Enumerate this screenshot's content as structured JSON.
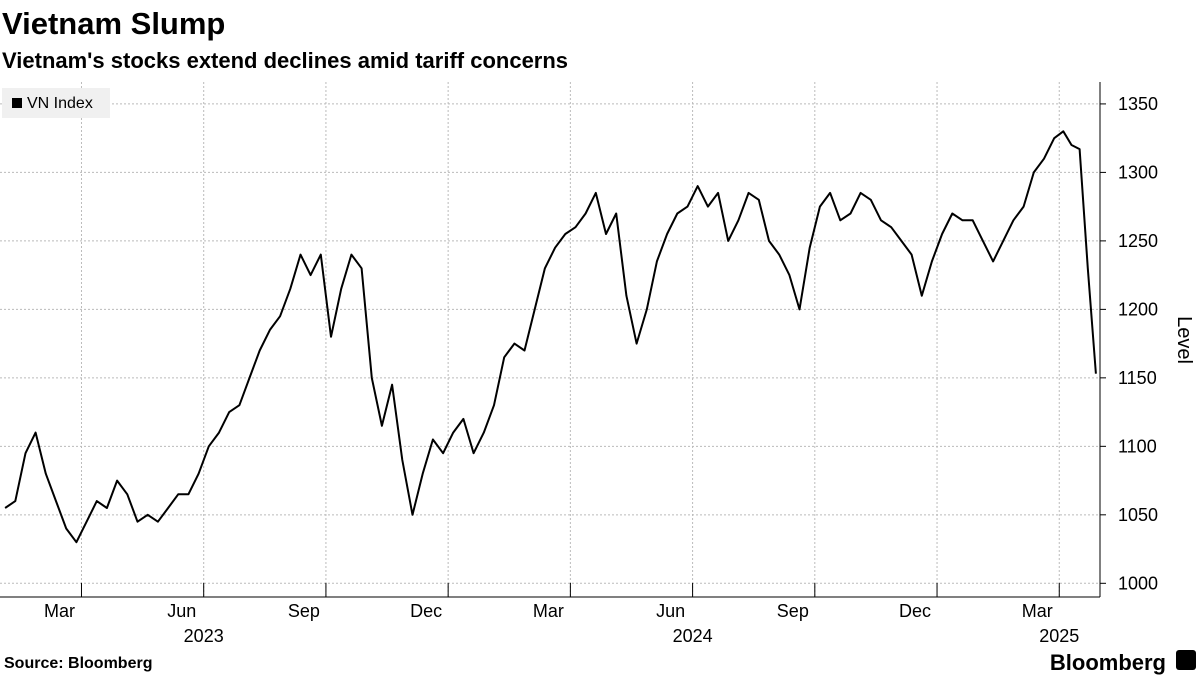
{
  "chart_data": {
    "type": "line",
    "title": "Vietnam Slump",
    "subtitle": "Vietnam's stocks extend declines amid tariff concerns",
    "y_axis_label": "Level",
    "source": "Source: Bloomberg",
    "brand": "Bloomberg",
    "legend_position": "top-left",
    "grid": true,
    "x": [
      "2023-01",
      "2023-01",
      "2023-01",
      "2023-01",
      "2023-02",
      "2023-02",
      "2023-02",
      "2023-02",
      "2023-03",
      "2023-03",
      "2023-03",
      "2023-03",
      "2023-04",
      "2023-04",
      "2023-04",
      "2023-04",
      "2023-05",
      "2023-05",
      "2023-05",
      "2023-05",
      "2023-06",
      "2023-06",
      "2023-06",
      "2023-06",
      "2023-07",
      "2023-07",
      "2023-07",
      "2023-07",
      "2023-08",
      "2023-08",
      "2023-08",
      "2023-08",
      "2023-09",
      "2023-09",
      "2023-09",
      "2023-09",
      "2023-10",
      "2023-10",
      "2023-10",
      "2023-10",
      "2023-11",
      "2023-11",
      "2023-11",
      "2023-11",
      "2023-12",
      "2023-12",
      "2023-12",
      "2023-12",
      "2024-01",
      "2024-01",
      "2024-01",
      "2024-01",
      "2024-02",
      "2024-02",
      "2024-02",
      "2024-02",
      "2024-03",
      "2024-03",
      "2024-03",
      "2024-03",
      "2024-04",
      "2024-04",
      "2024-04",
      "2024-04",
      "2024-05",
      "2024-05",
      "2024-05",
      "2024-05",
      "2024-06",
      "2024-06",
      "2024-06",
      "2024-06",
      "2024-07",
      "2024-07",
      "2024-07",
      "2024-07",
      "2024-08",
      "2024-08",
      "2024-08",
      "2024-08",
      "2024-09",
      "2024-09",
      "2024-09",
      "2024-09",
      "2024-10",
      "2024-10",
      "2024-10",
      "2024-10",
      "2024-11",
      "2024-11",
      "2024-11",
      "2024-11",
      "2024-12",
      "2024-12",
      "2024-12",
      "2024-12",
      "2025-01",
      "2025-01",
      "2025-01",
      "2025-01",
      "2025-02",
      "2025-02",
      "2025-02",
      "2025-02",
      "2025-03",
      "2025-03",
      "2025-03",
      "2025-03",
      "2025-03"
    ],
    "series": [
      {
        "name": "VN Index",
        "color": "#000000",
        "values": [
          1055,
          1060,
          1095,
          1110,
          1080,
          1060,
          1040,
          1030,
          1045,
          1060,
          1055,
          1075,
          1065,
          1045,
          1050,
          1045,
          1055,
          1065,
          1065,
          1080,
          1100,
          1110,
          1125,
          1130,
          1150,
          1170,
          1185,
          1195,
          1215,
          1240,
          1225,
          1240,
          1180,
          1215,
          1240,
          1230,
          1150,
          1115,
          1145,
          1090,
          1050,
          1080,
          1105,
          1095,
          1110,
          1120,
          1095,
          1110,
          1130,
          1165,
          1175,
          1170,
          1200,
          1230,
          1245,
          1255,
          1260,
          1270,
          1285,
          1255,
          1270,
          1210,
          1175,
          1200,
          1235,
          1255,
          1270,
          1275,
          1290,
          1275,
          1285,
          1250,
          1265,
          1285,
          1280,
          1250,
          1240,
          1225,
          1200,
          1245,
          1275,
          1285,
          1265,
          1270,
          1285,
          1280,
          1265,
          1260,
          1250,
          1240,
          1210,
          1235,
          1255,
          1270,
          1265,
          1265,
          1250,
          1235,
          1250,
          1265,
          1275,
          1300,
          1310,
          1325,
          1330,
          1320,
          1317,
          1230,
          1153
        ]
      }
    ],
    "xlim": [
      "2023-01",
      "2025-03"
    ],
    "xticks": [
      {
        "value": "2023-03",
        "label": "Mar"
      },
      {
        "value": "2023-06",
        "label": "Jun",
        "year": "2023"
      },
      {
        "value": "2023-09",
        "label": "Sep"
      },
      {
        "value": "2023-12",
        "label": "Dec"
      },
      {
        "value": "2024-03",
        "label": "Mar"
      },
      {
        "value": "2024-06",
        "label": "Jun",
        "year": "2024"
      },
      {
        "value": "2024-09",
        "label": "Sep"
      },
      {
        "value": "2024-12",
        "label": "Dec"
      },
      {
        "value": "2025-03",
        "label": "Mar",
        "year": "2025"
      }
    ],
    "ylim": [
      990,
      1366
    ],
    "yticks": [
      1000,
      1050,
      1100,
      1150,
      1200,
      1250,
      1300,
      1350
    ]
  }
}
